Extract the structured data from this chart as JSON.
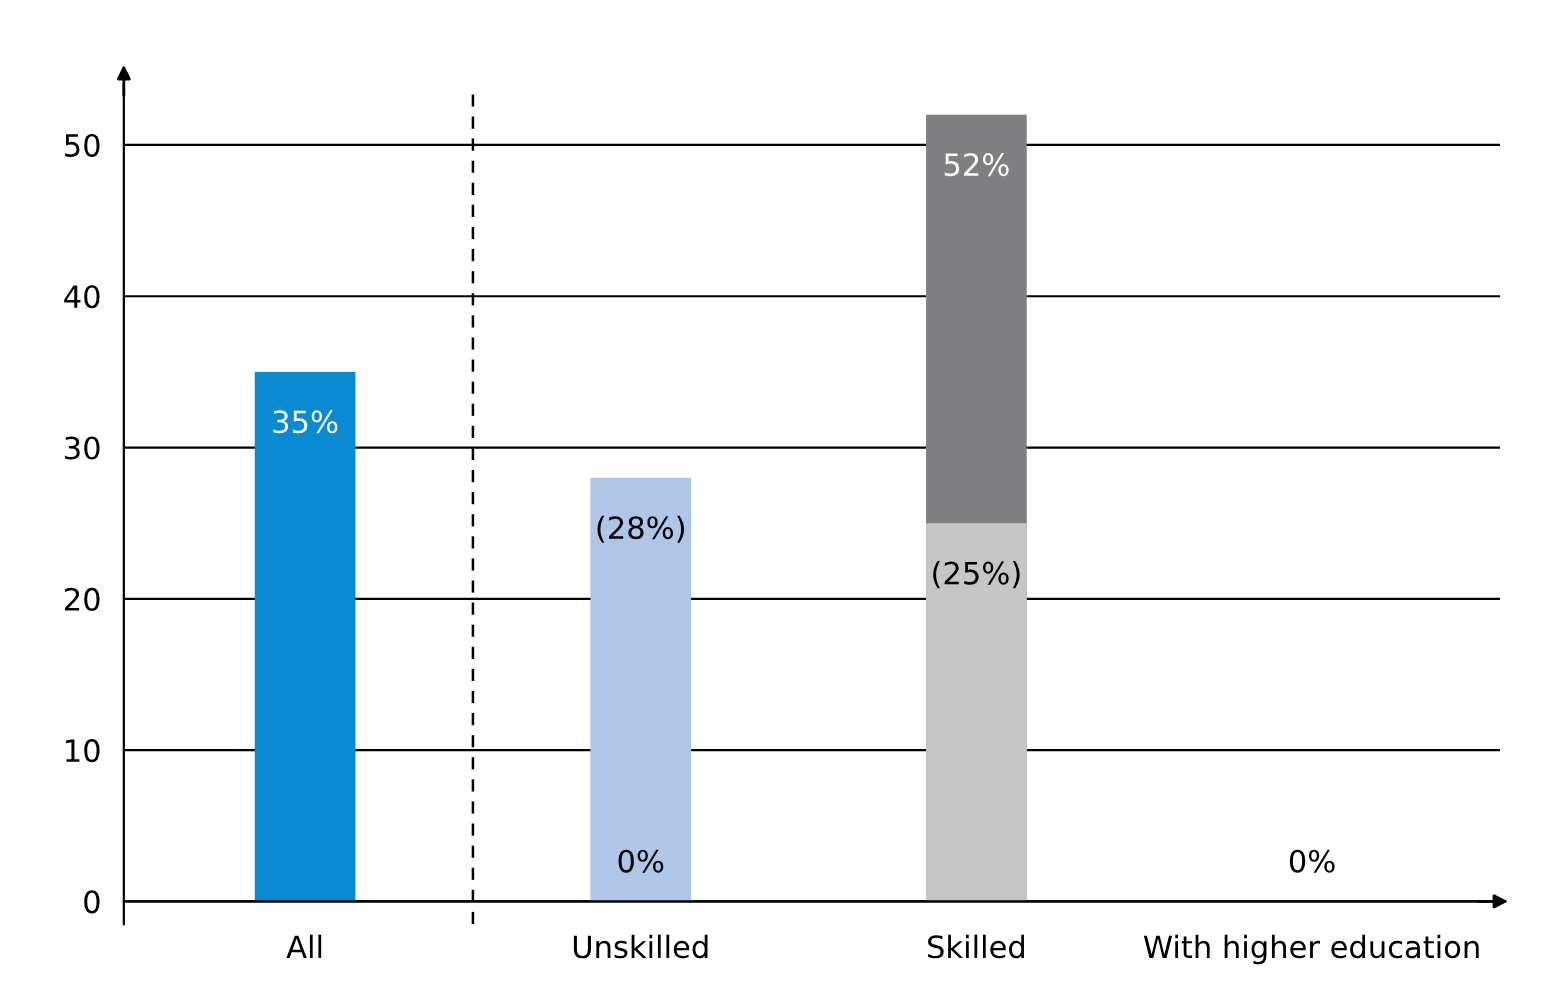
{
  "chart_data": {
    "type": "bar",
    "categories": [
      "All",
      "Unskilled",
      "Skilled",
      "With higher education"
    ],
    "series": [
      {
        "colors": [
          "#0a8ad2",
          "#afc6e8",
          "#7f7f82",
          "#afc6e8"
        ],
        "values": [
          35,
          0,
          52,
          0
        ],
        "value_labels": [
          "35%",
          "0%",
          "52%",
          "0%"
        ]
      },
      {
        "colors": [
          null,
          "#afc6e8",
          "#c6c6c6",
          null
        ],
        "values": [
          null,
          28,
          25,
          null
        ],
        "value_labels": [
          null,
          "(28%)",
          "(25%)",
          null
        ]
      }
    ],
    "ylim": [
      -1.5,
      54
    ],
    "yticks": [
      0,
      10,
      20,
      30,
      40,
      50
    ],
    "grid": "y"
  }
}
